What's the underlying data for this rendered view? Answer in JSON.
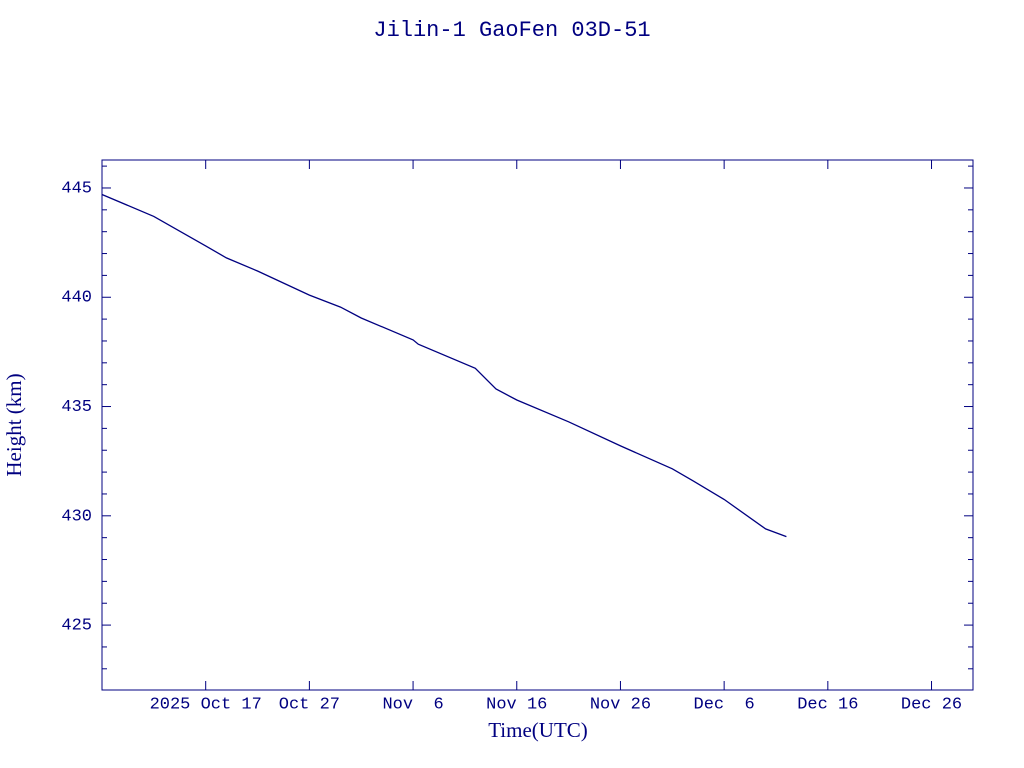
{
  "chart_data": {
    "type": "line",
    "title": "Jilin-1 GaoFen 03D-51",
    "xlabel": "Time(UTC)",
    "ylabel": "Height (km)",
    "color": "#000080",
    "x": [
      "2025-10-07",
      "2025-10-12",
      "2025-10-17",
      "2025-10-19",
      "2025-10-22",
      "2025-10-27",
      "2025-10-30",
      "2025-11-01",
      "2025-11-06",
      "2025-11-06T12:00",
      "2025-11-12",
      "2025-11-14",
      "2025-11-16",
      "2025-11-21",
      "2025-11-26",
      "2025-12-01",
      "2025-12-03",
      "2025-12-06",
      "2025-12-10",
      "2025-12-12"
    ],
    "values": [
      444.7,
      443.7,
      442.35,
      441.8,
      441.2,
      440.1,
      439.55,
      439.05,
      438.05,
      437.85,
      436.75,
      435.8,
      435.3,
      434.3,
      433.2,
      432.15,
      431.6,
      430.75,
      429.4,
      429.05
    ],
    "xlim": [
      "2025-10-07",
      "2025-12-30"
    ],
    "xticks": [
      {
        "value": "2025-10-17",
        "label": "2025 Oct 17"
      },
      {
        "value": "2025-10-27",
        "label": "Oct 27"
      },
      {
        "value": "2025-11-06",
        "label": "Nov  6"
      },
      {
        "value": "2025-11-16",
        "label": "Nov 16"
      },
      {
        "value": "2025-11-26",
        "label": "Nov 26"
      },
      {
        "value": "2025-12-06",
        "label": "Dec  6"
      },
      {
        "value": "2025-12-16",
        "label": "Dec 16"
      },
      {
        "value": "2025-12-26",
        "label": "Dec 26"
      }
    ],
    "ylim": [
      422.03,
      446.28
    ],
    "yticks": [
      425,
      430,
      435,
      440,
      445
    ],
    "yminorticks": [
      423,
      424,
      426,
      427,
      428,
      429,
      431,
      432,
      433,
      434,
      436,
      437,
      438,
      439,
      441,
      442,
      443,
      444,
      446
    ]
  }
}
